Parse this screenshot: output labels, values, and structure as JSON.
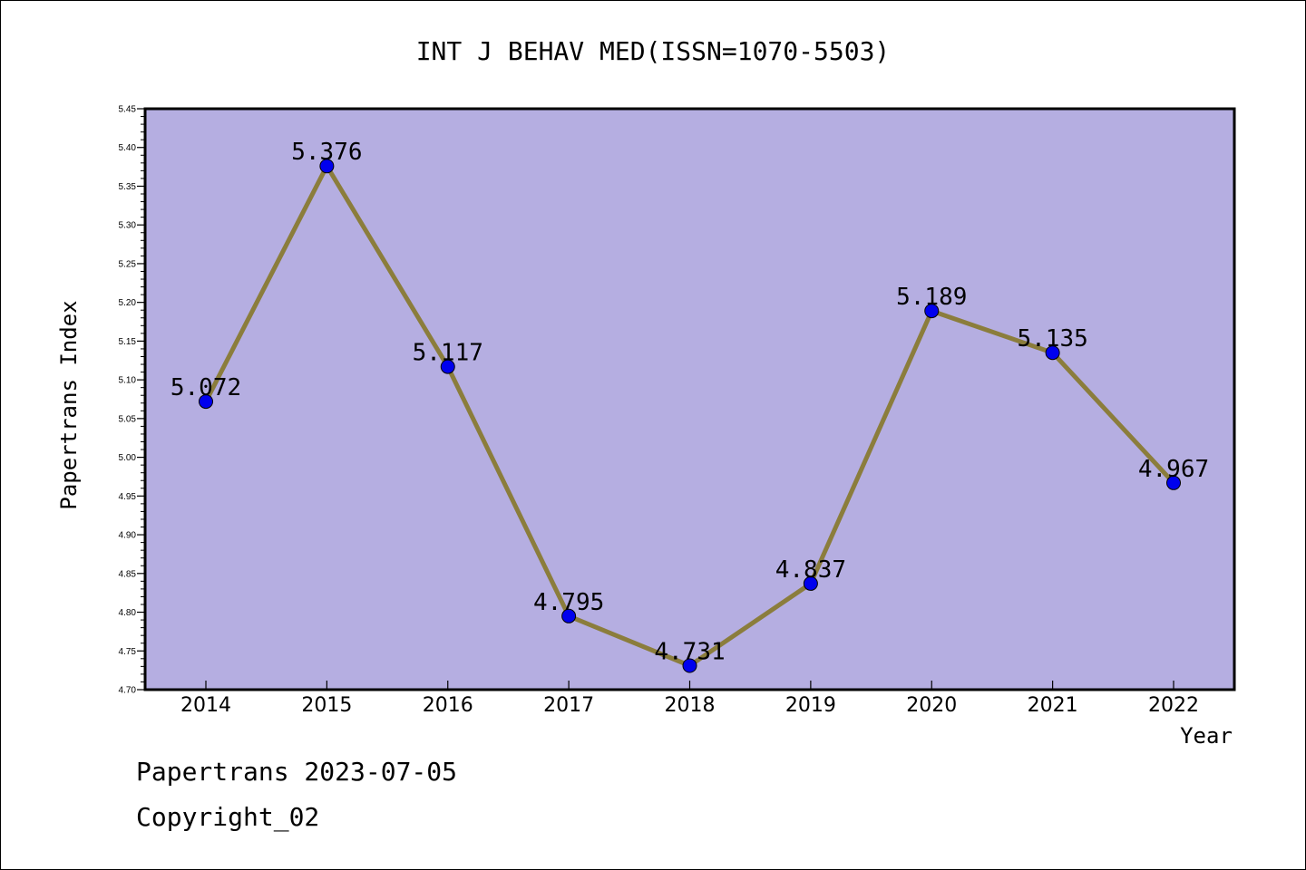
{
  "chart_data": {
    "type": "line",
    "title": "INT J BEHAV MED(ISSN=1070-5503)",
    "xlabel": "Year",
    "ylabel": "Papertrans Index",
    "categories": [
      "2014",
      "2015",
      "2016",
      "2017",
      "2018",
      "2019",
      "2020",
      "2021",
      "2022"
    ],
    "values": [
      5.072,
      5.376,
      5.117,
      4.795,
      4.731,
      4.837,
      5.189,
      5.135,
      4.967
    ],
    "data_labels": [
      "5.072",
      "5.376",
      "5.117",
      "4.795",
      "4.731",
      "4.837",
      "5.189",
      "5.135",
      "4.967"
    ],
    "ylim": [
      4.7,
      5.45
    ],
    "yticks": [
      "4.70",
      "4.75",
      "4.80",
      "4.85",
      "4.90",
      "4.95",
      "5.00",
      "5.05",
      "5.10",
      "5.15",
      "5.20",
      "5.25",
      "5.30",
      "5.35",
      "5.40",
      "5.45"
    ],
    "colors": {
      "plot_background": "#b5aee1",
      "line": "#8b7d3c",
      "marker": "#0000ee"
    },
    "grid": false,
    "legend": "none"
  },
  "footer": {
    "line1": "Papertrans 2023-07-05",
    "line2": "Copyright_02"
  }
}
